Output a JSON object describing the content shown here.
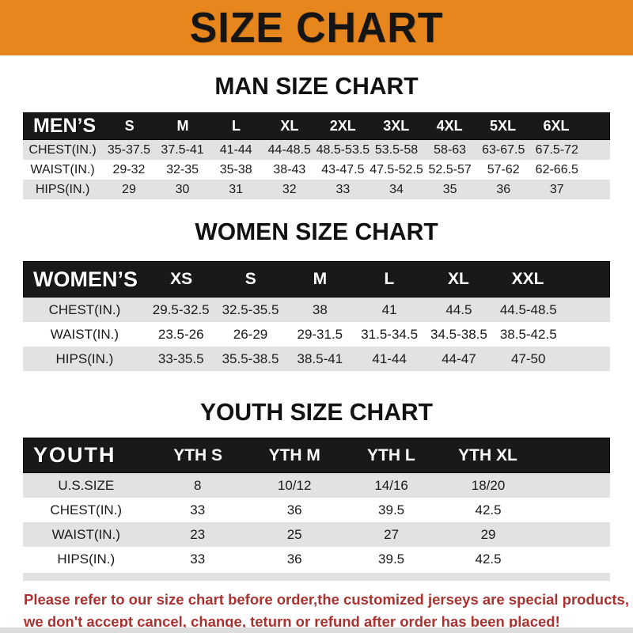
{
  "banner": {
    "title": "SIZE CHART"
  },
  "colors": {
    "banner_bg": "#E8861E",
    "bar_bg": "#191919",
    "row_gray": "#E2E2E2",
    "row_white": "#FFFFFF",
    "footer_red": "#A93230"
  },
  "sections": [
    {
      "heading": "MAN SIZE CHART",
      "corner_label": "MEN’S",
      "columns": [
        "S",
        "M",
        "L",
        "XL",
        "2XL",
        "3XL",
        "4XL",
        "5XL",
        "6XL"
      ],
      "rows": [
        {
          "label": "CHEST(IN.)",
          "values": [
            "35-37.5",
            "37.5-41",
            "41-44",
            "44-48.5",
            "48.5-53.5",
            "53.5-58",
            "58-63",
            "63-67.5",
            "67.5-72"
          ]
        },
        {
          "label": "WAIST(IN.)",
          "values": [
            "29-32",
            "32-35",
            "35-38",
            "38-43",
            "43-47.5",
            "47.5-52.5",
            "52.5-57",
            "57-62",
            "62-66.5"
          ]
        },
        {
          "label": "HIPS(IN.)",
          "values": [
            "29",
            "30",
            "31",
            "32",
            "33",
            "34",
            "35",
            "36",
            "37"
          ]
        }
      ]
    },
    {
      "heading": "WOMEN SIZE CHART",
      "corner_label": "WOMEN’S",
      "columns": [
        "XS",
        "S",
        "M",
        "L",
        "XL",
        "XXL"
      ],
      "rows": [
        {
          "label": "CHEST(IN.)",
          "values": [
            "29.5-32.5",
            "32.5-35.5",
            "38",
            "41",
            "44.5",
            "44.5-48.5"
          ]
        },
        {
          "label": "WAIST(IN.)",
          "values": [
            "23.5-26",
            "26-29",
            "29-31.5",
            "31.5-34.5",
            "34.5-38.5",
            "38.5-42.5"
          ]
        },
        {
          "label": "HIPS(IN.)",
          "values": [
            "33-35.5",
            "35.5-38.5",
            "38.5-41",
            "41-44",
            "44-47",
            "47-50"
          ]
        }
      ]
    },
    {
      "heading": "YOUTH SIZE CHART",
      "corner_label": "YOUTH",
      "columns": [
        "YTH S",
        "YTH M",
        "YTH L",
        "YTH XL"
      ],
      "rows": [
        {
          "label": "U.S.SIZE",
          "values": [
            "8",
            "10/12",
            "14/16",
            "18/20"
          ]
        },
        {
          "label": "CHEST(IN.)",
          "values": [
            "33",
            "36",
            "39.5",
            "42.5"
          ]
        },
        {
          "label": "WAIST(IN.)",
          "values": [
            "23",
            "25",
            "27",
            "29"
          ]
        },
        {
          "label": "HIPS(IN.)",
          "values": [
            "33",
            "36",
            "39.5",
            "42.5"
          ]
        }
      ]
    }
  ],
  "footer": {
    "line1": "Please refer to our size chart before order,the customized jerseys are special products,",
    "line2": "we don't accept cancel, change, teturn or refund after order has been placed!"
  }
}
